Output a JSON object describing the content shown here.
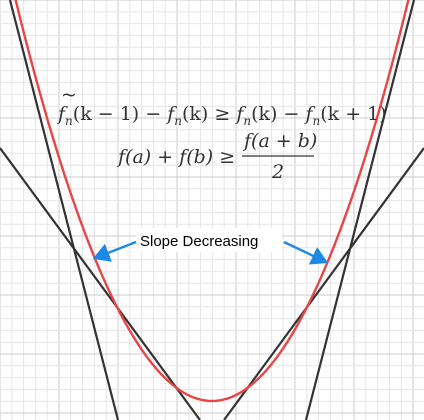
{
  "equations": {
    "line1_parts": [
      "f",
      "n",
      "(k − 1) − ",
      "f",
      "n",
      "(k) ≥ ",
      "f",
      "n",
      "(k) − ",
      "f",
      "n",
      "(k + 1)"
    ],
    "line2_lhs": "f(a) + f(b) ≥",
    "line2_num": "f(a + b)",
    "line2_den": "2"
  },
  "annotation": {
    "label": "Slope Decreasing"
  },
  "colors": {
    "curve": "#e84545",
    "lines": "#333333",
    "arrow": "#1e88e5",
    "grid_minor": "#e6e6e6",
    "grid_major": "#cccccc"
  }
}
